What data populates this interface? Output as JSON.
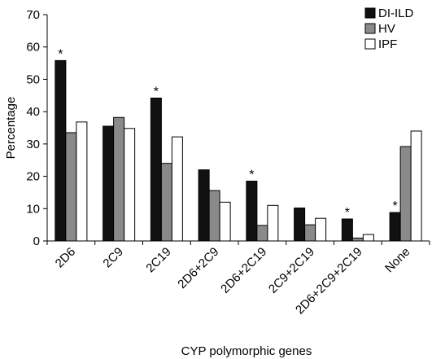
{
  "chart_data": {
    "type": "bar",
    "title": "",
    "xlabel": "CYP polymorphic genes",
    "ylabel": "Percentage",
    "ylim": [
      0,
      70
    ],
    "yticks": [
      0,
      10,
      20,
      30,
      40,
      50,
      60,
      70
    ],
    "grid": false,
    "legend_position": "top-right",
    "categories": [
      "2D6",
      "2C9",
      "2C19",
      "2D6+2C9",
      "2D6+2C19",
      "2C9+2C19",
      "2D6+2C9+2C19",
      "None"
    ],
    "series": [
      {
        "name": "DI-ILD",
        "color": "#111111",
        "values": [
          55.8,
          35.5,
          44.2,
          22.0,
          18.5,
          10.2,
          6.8,
          8.8
        ]
      },
      {
        "name": "HV",
        "color": "#8a8a8a",
        "values": [
          33.5,
          38.2,
          24.0,
          15.6,
          4.8,
          5.0,
          0.9,
          29.2
        ]
      },
      {
        "name": "IPF",
        "color": "#ffffff",
        "values": [
          36.8,
          34.8,
          32.2,
          12.0,
          11.0,
          7.0,
          2.0,
          34.0
        ]
      }
    ],
    "annotations": [
      {
        "text": "*",
        "category": "2D6",
        "series": "DI-ILD"
      },
      {
        "text": "*",
        "category": "2C19",
        "series": "DI-ILD"
      },
      {
        "text": "*",
        "category": "2D6+2C19",
        "series": "DI-ILD"
      },
      {
        "text": "*",
        "category": "2D6+2C9+2C19",
        "series": "DI-ILD"
      },
      {
        "text": "*",
        "category": "None",
        "series": "DI-ILD"
      }
    ]
  }
}
